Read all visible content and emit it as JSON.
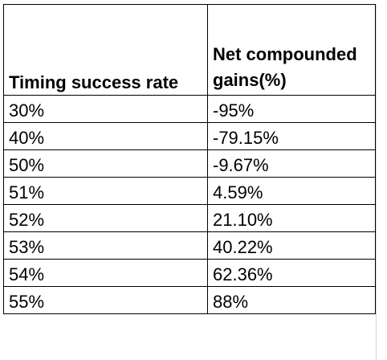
{
  "table": {
    "headers": [
      "Timing success rate",
      "Net compounded gains(%)"
    ],
    "rows": [
      [
        "30%",
        "-95%"
      ],
      [
        "40%",
        "-79.15%"
      ],
      [
        "50%",
        "-9.67%"
      ],
      [
        "51%",
        "4.59%"
      ],
      [
        "52%",
        "21.10%"
      ],
      [
        "53%",
        "40.22%"
      ],
      [
        "54%",
        "62.36%"
      ],
      [
        "55%",
        "88%"
      ]
    ]
  }
}
